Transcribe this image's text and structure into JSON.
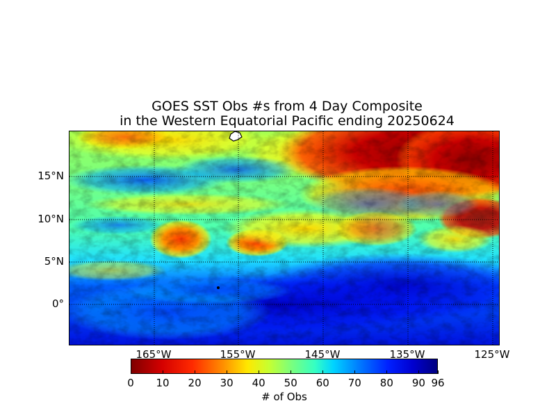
{
  "title": {
    "line1": "GOES SST Obs #s from 4 Day Composite",
    "line2": "in the Western Equatorial Pacific ending 20250624"
  },
  "map": {
    "lat_labels": [
      "15°N",
      "10°N",
      "5°N",
      "0°"
    ],
    "lon_labels": [
      "165°W",
      "155°W",
      "145°W",
      "135°W",
      "125°W"
    ],
    "gridlines": "dotted"
  },
  "colorbar": {
    "ticks": [
      "0",
      "10",
      "20",
      "30",
      "40",
      "50",
      "60",
      "70",
      "80",
      "90",
      "96"
    ],
    "label": "# of Obs",
    "colormap": "jet"
  },
  "colors": {
    "low": "#7f0000",
    "mid": "#7dff7a",
    "high": "#000080"
  }
}
